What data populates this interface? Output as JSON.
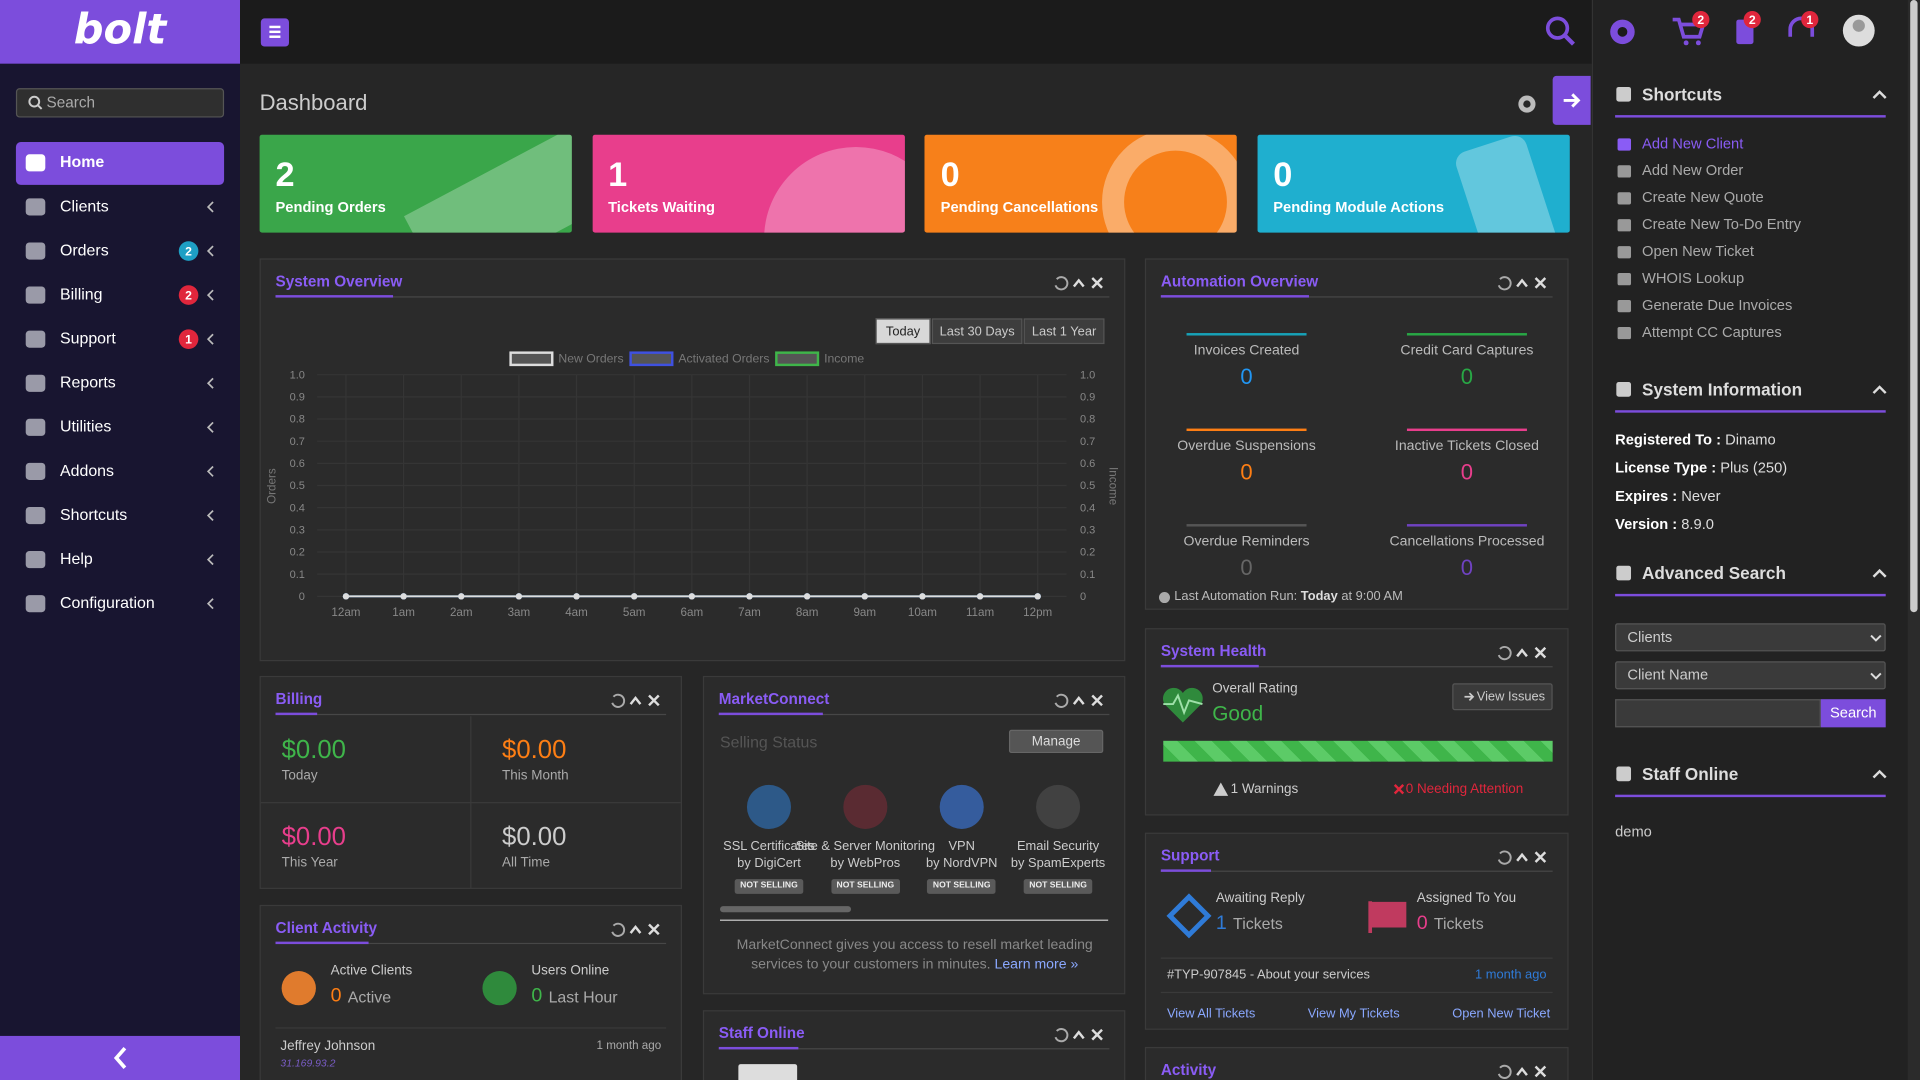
{
  "brand": "bolt",
  "topbar": {
    "cart_badge": 2,
    "billing_badge": 2,
    "support_badge": 1
  },
  "sidebar": {
    "search_placeholder": "Search",
    "items": [
      {
        "label": "Home"
      },
      {
        "label": "Clients"
      },
      {
        "label": "Orders",
        "badge": 2
      },
      {
        "label": "Billing",
        "badge": 2
      },
      {
        "label": "Support",
        "badge": 1
      },
      {
        "label": "Reports"
      },
      {
        "label": "Utilities"
      },
      {
        "label": "Addons"
      },
      {
        "label": "Shortcuts"
      },
      {
        "label": "Help"
      },
      {
        "label": "Configuration"
      }
    ]
  },
  "page_title": "Dashboard",
  "stat_cards": [
    {
      "value": 2,
      "label": "Pending Orders"
    },
    {
      "value": 1,
      "label": "Tickets Waiting"
    },
    {
      "value": 0,
      "label": "Pending Cancellations"
    },
    {
      "value": 0,
      "label": "Pending Module Actions"
    }
  ],
  "system_overview": {
    "title": "System Overview",
    "ranges": [
      "Today",
      "Last 30 Days",
      "Last 1 Year"
    ],
    "chart": {
      "type": "line",
      "y_label": "Orders",
      "y2_label": "Income",
      "categories": [
        "12am",
        "1am",
        "2am",
        "3am",
        "4am",
        "5am",
        "6am",
        "7am",
        "8am",
        "9am",
        "10am",
        "11am",
        "12pm"
      ],
      "series": [
        {
          "name": "New Orders",
          "color": "#dddddd",
          "values": [
            0,
            0,
            0,
            0,
            0,
            0,
            0,
            0,
            0,
            0,
            0,
            0,
            0
          ]
        },
        {
          "name": "Activated Orders",
          "color": "#3f51e0",
          "values": [
            0,
            0,
            0,
            0,
            0,
            0,
            0,
            0,
            0,
            0,
            0,
            0,
            0
          ]
        },
        {
          "name": "Income",
          "color": "#3fb54a",
          "axis": "y2",
          "values": [
            0,
            0,
            0,
            0,
            0,
            0,
            0,
            0,
            0,
            0,
            0,
            0,
            0
          ]
        }
      ],
      "ylim": [
        0,
        1
      ],
      "yticks": [
        0,
        0.1,
        0.2,
        0.3,
        0.4,
        0.5,
        0.6,
        0.7,
        0.8,
        0.9,
        {
          "value": 1,
          "label": "1.0"
        }
      ],
      "y2lim": [
        0,
        1
      ],
      "y2ticks": [
        0,
        0.1,
        0.2,
        0.3,
        0.4,
        0.5,
        0.6,
        0.7,
        0.8,
        0.9,
        {
          "value": 1,
          "label": "1.0"
        }
      ],
      "grid": true
    }
  },
  "automation": {
    "title": "Automation Overview",
    "items": [
      {
        "label": "Invoices Created",
        "value": 0
      },
      {
        "label": "Credit Card Captures",
        "value": 0
      },
      {
        "label": "Overdue Suspensions",
        "value": 0
      },
      {
        "label": "Inactive Tickets Closed",
        "value": 0
      },
      {
        "label": "Overdue Reminders",
        "value": 0
      },
      {
        "label": "Cancellations Processed",
        "value": 0
      }
    ],
    "last_run_label": "Last Automation Run:",
    "last_run_day": "Today",
    "last_run_time": "at 9:00 AM"
  },
  "billing": {
    "title": "Billing",
    "items": [
      {
        "amount": "$0.00",
        "label": "Today"
      },
      {
        "amount": "$0.00",
        "label": "This Month"
      },
      {
        "amount": "$0.00",
        "label": "This Year"
      },
      {
        "amount": "$0.00",
        "label": "All Time"
      }
    ]
  },
  "marketconnect": {
    "title": "MarketConnect",
    "status_title": "Selling Status",
    "manage": "Manage",
    "services": [
      {
        "name": "SSL Certificates",
        "by": "by DigiCert",
        "status": "NOT SELLING"
      },
      {
        "name": "Site & Server Monitoring",
        "by": "by WebPros",
        "status": "NOT SELLING"
      },
      {
        "name": "VPN",
        "by": "by NordVPN",
        "status": "NOT SELLING"
      },
      {
        "name": "Email Security",
        "by": "by SpamExperts",
        "status": "NOT SELLING"
      }
    ],
    "info": "MarketConnect gives you access to resell market leading services to your customers in minutes.",
    "learn_more": "Learn more »"
  },
  "client_activity": {
    "title": "Client Activity",
    "active_label": "Active Clients",
    "active_value": 0,
    "active_unit": "Active",
    "online_label": "Users Online",
    "online_value": 0,
    "online_unit": "Last Hour",
    "recent": [
      {
        "name": "Jeffrey Johnson",
        "ip": "31.169.93.2",
        "time": "1 month ago"
      }
    ]
  },
  "staff_online_panel": {
    "title": "Staff Online"
  },
  "system_health": {
    "title": "System Health",
    "rating_label": "Overall Rating",
    "rating": "Good",
    "view_issues": "View Issues",
    "warnings": "1 Warnings",
    "needing_attention": "0 Needing Attention"
  },
  "support": {
    "title": "Support",
    "awaiting_label": "Awaiting Reply",
    "awaiting_value": 1,
    "assigned_label": "Assigned To You",
    "assigned_value": 0,
    "unit": "Tickets",
    "ticket": {
      "subject": "#TYP-907845 - About your services",
      "time": "1 month ago"
    },
    "links": [
      "View All Tickets",
      "View My Tickets",
      "Open New Ticket"
    ]
  },
  "activity": {
    "title": "Activity"
  },
  "right_panel": {
    "shortcuts": {
      "title": "Shortcuts",
      "items": [
        "Add New Client",
        "Add New Order",
        "Create New Quote",
        "Create New To-Do Entry",
        "Open New Ticket",
        "WHOIS Lookup",
        "Generate Due Invoices",
        "Attempt CC Captures"
      ]
    },
    "system_info": {
      "title": "System Information",
      "rows": [
        {
          "label": "Registered To :",
          "value": "Dinamo"
        },
        {
          "label": "License Type :",
          "value": "Plus (250)"
        },
        {
          "label": "Expires :",
          "value": "Never"
        },
        {
          "label": "Version :",
          "value": "8.9.0"
        }
      ]
    },
    "advanced_search": {
      "title": "Advanced Search",
      "type": "Clients",
      "field": "Client Name",
      "button": "Search"
    },
    "staff_online": {
      "title": "Staff Online",
      "users": [
        "demo"
      ]
    }
  }
}
